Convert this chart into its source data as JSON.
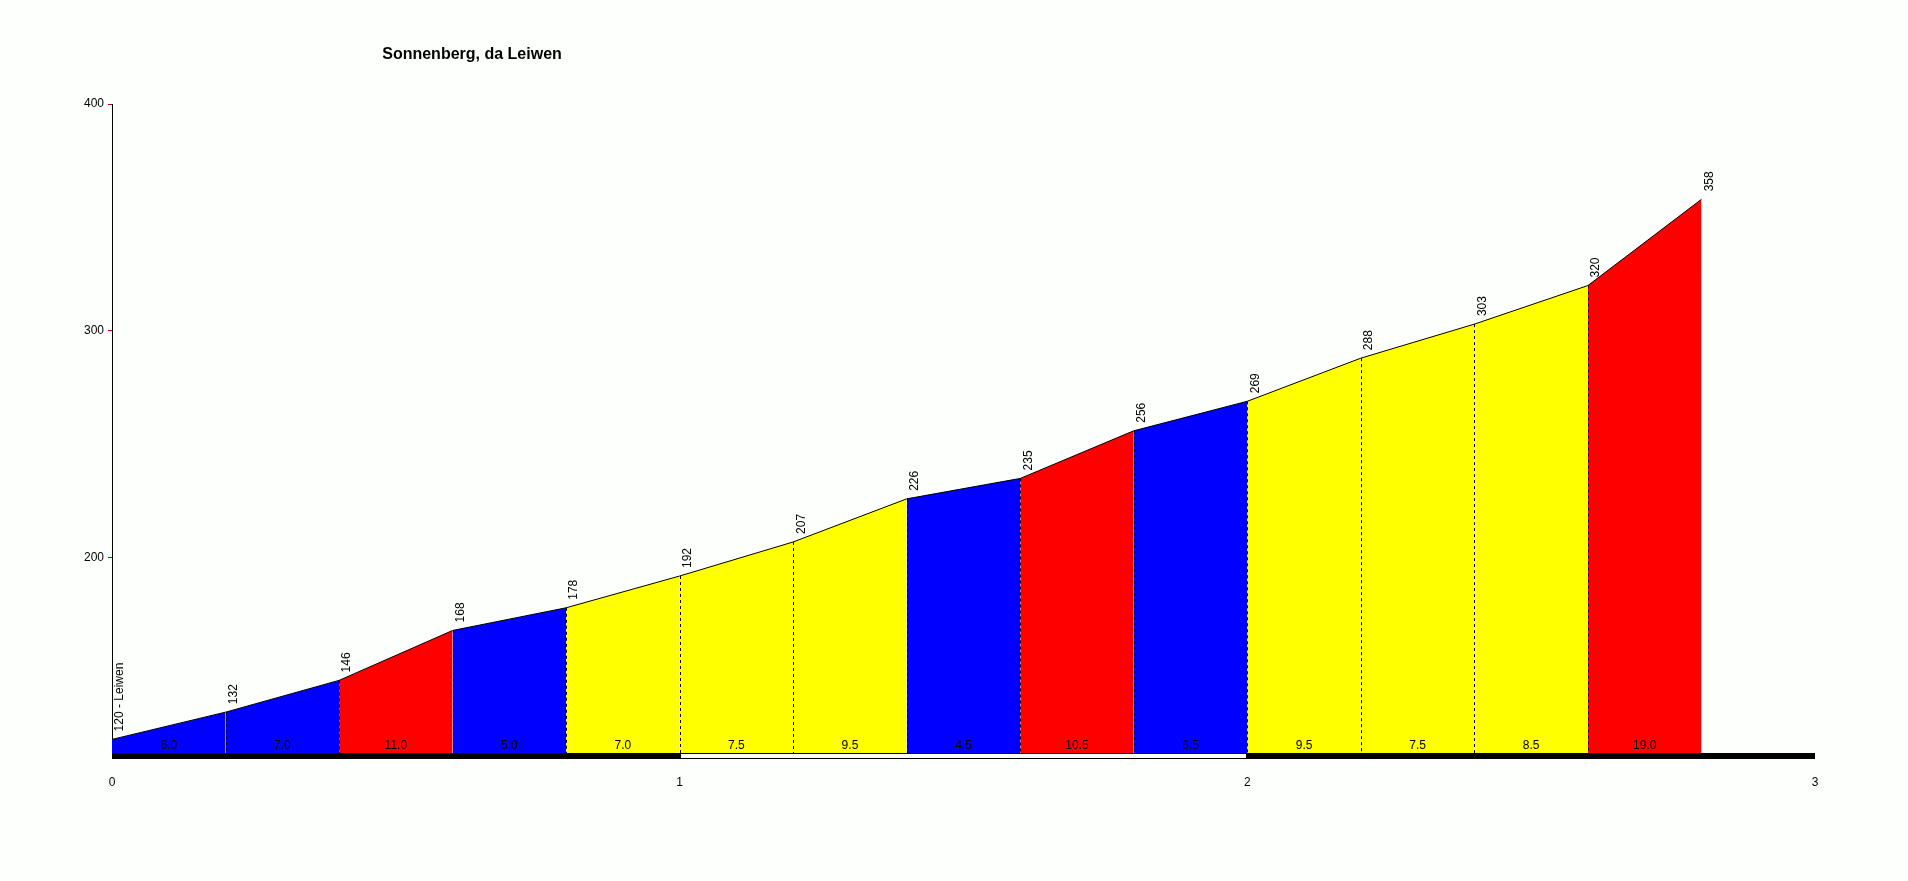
{
  "chart_data": {
    "type": "area",
    "title": "Sonnenberg, da Leiwen",
    "series": [
      {
        "color": "#0000ff",
        "x": [
          0,
          0.2
        ],
        "values": [
          120,
          132
        ],
        "value_labels": [
          "120 - Leiwen",
          null
        ]
      },
      {
        "color": "#0000ff",
        "x": [
          0.2,
          0.4
        ],
        "values": [
          132,
          146
        ],
        "value_labels": [
          "132",
          null
        ]
      },
      {
        "color": "#ff0000",
        "x": [
          0.4,
          0.6
        ],
        "values": [
          146,
          168
        ],
        "value_labels": [
          "146",
          null
        ]
      },
      {
        "color": "#0000ff",
        "x": [
          0.6,
          0.8
        ],
        "values": [
          168,
          178
        ],
        "value_labels": [
          "168",
          null
        ]
      },
      {
        "color": "#ffff00",
        "x": [
          0.8,
          1.0
        ],
        "values": [
          178,
          192
        ],
        "value_labels": [
          "178",
          null
        ]
      },
      {
        "color": "#ffff00",
        "x": [
          1.0,
          1.2
        ],
        "values": [
          192,
          207
        ],
        "value_labels": [
          "192",
          null
        ]
      },
      {
        "color": "#ffff00",
        "x": [
          1.2,
          1.4
        ],
        "values": [
          207,
          226
        ],
        "value_labels": [
          "207",
          null
        ]
      },
      {
        "color": "#0000ff",
        "x": [
          1.4,
          1.6
        ],
        "values": [
          226,
          235
        ],
        "value_labels": [
          "226",
          null
        ]
      },
      {
        "color": "#ff0000",
        "x": [
          1.6,
          1.8
        ],
        "values": [
          235,
          256
        ],
        "value_labels": [
          "235",
          null
        ]
      },
      {
        "color": "#0000ff",
        "x": [
          1.8,
          2.0
        ],
        "values": [
          256,
          269
        ],
        "value_labels": [
          "256",
          null
        ]
      },
      {
        "color": "#ffff00",
        "x": [
          2.0,
          2.2
        ],
        "values": [
          269,
          288
        ],
        "value_labels": [
          "269",
          null
        ]
      },
      {
        "color": "#ffff00",
        "x": [
          2.2,
          2.4
        ],
        "values": [
          288,
          303
        ],
        "value_labels": [
          "288",
          null
        ]
      },
      {
        "color": "#ffff00",
        "x": [
          2.4,
          2.6
        ],
        "values": [
          303,
          320
        ],
        "value_labels": [
          "303",
          null
        ]
      },
      {
        "color": "#ff0000",
        "x": [
          2.6,
          2.8
        ],
        "values": [
          320,
          358
        ],
        "value_labels": [
          "320",
          "358"
        ]
      }
    ],
    "annotations": [
      "6.0",
      "7.0",
      "11.0",
      "5.0",
      "7.0",
      "7.5",
      "9.5",
      "4.5",
      "10.5",
      "6.5",
      "9.5",
      "7.5",
      "8.5",
      "19.0"
    ],
    "xlim": [
      0,
      3
    ],
    "xticks": [
      0,
      1,
      2,
      3
    ],
    "ylim": [
      114,
      400
    ],
    "yticks": [
      200,
      300,
      400
    ],
    "grid": false,
    "legend": false,
    "marker": "none",
    "line_style": "solid"
  }
}
